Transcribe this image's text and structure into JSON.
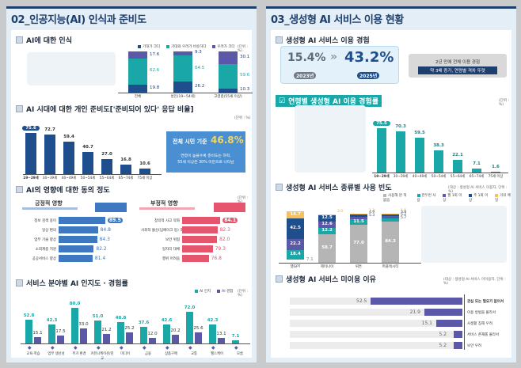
{
  "left": {
    "title": "02_인공지능(AI) 인식과 준비도",
    "s1": {
      "title": "AI에 대한 인식",
      "unit": "(단위 : %)",
      "legend": [
        "기대가 크다",
        "기대와 우려가 비슷하다",
        "우려가 크다"
      ],
      "categories": [
        "전체",
        "성인(19~54세)",
        "고령층(55세 이상)"
      ],
      "expect": [
        19.8,
        26.2,
        10.3
      ],
      "similar": [
        62.6,
        64.5,
        59.6
      ],
      "concern": [
        17.6,
        9.3,
        30.1
      ]
    },
    "s2": {
      "title": "AI 시대에 대한 개인 준비도['준비되어 있다' 응답 비율]",
      "unit": "(단위 : %)",
      "categories": [
        "19~29세",
        "30~39세",
        "40~49세",
        "50~54세",
        "55~64세",
        "65~74세",
        "75세 이상"
      ],
      "values": [
        75.6,
        72.7,
        59.4,
        40.7,
        27.0,
        16.8,
        10.6
      ],
      "callout_head": "전체 시민 기준",
      "callout_value": "46.8%",
      "callout_line1": "연령이 높을수록 준비도는 하락,",
      "callout_line2": "55세 이상은 30% 미만으로 나타남"
    },
    "s3": {
      "title": "AI의 영향에 대한 동의 정도",
      "unit": "(단위 : %)",
      "positive_title": "긍정적 영향",
      "positive_labels": [
        "정보 검색 용이",
        "일상 편의",
        "업무 기술 향상",
        "소외계층 지원",
        "공공서비스 향상"
      ],
      "positive_values": [
        89.5,
        84.8,
        84.3,
        82.2,
        81.4
      ],
      "negative_title": "부정적 영향",
      "negative_labels": [
        "창의적 사고 약화",
        "사회적 불신(딥페이크 등) 조장",
        "보안 위협",
        "일자리 대체",
        "행위 어려움"
      ],
      "negative_values": [
        84.1,
        82.3,
        82.0,
        79.3,
        76.8
      ]
    },
    "s4": {
      "title": "서비스 분야별 AI 인지도 · 경험률",
      "unit": "(단위 : %)",
      "legend": [
        "AI 인지",
        "AI 경험"
      ],
      "categories": [
        "교육·학습",
        "업무 생산성",
        "주거 환경",
        "커뮤니케이션/친교",
        "미디어",
        "금융",
        "상품구매",
        "교통",
        "헬스케어",
        "모름"
      ],
      "awareness": [
        52.8,
        42.3,
        80.0,
        51.0,
        48.8,
        37.6,
        42.6,
        72.0,
        42.3,
        7.1
      ],
      "experience": [
        15.1,
        17.5,
        33.0,
        21.2,
        25.2,
        12.0,
        20.2,
        25.6,
        13.1,
        null
      ]
    }
  },
  "right": {
    "title": "03_생성형 AI 서비스 이용 현황",
    "s1": {
      "title": "생성형 AI 서비스 이용 경험",
      "v2023": "15.4%",
      "y2023": "2023년",
      "v2025": "43.2%",
      "y2025": "2025년",
      "arrow": "»",
      "note1": "2년 만에 전체 이용 경험",
      "note2": "약 3배 증가, 연령별 격차 뚜렷"
    },
    "s2": {
      "title": "연령별 생성형 AI 이용 경험률",
      "unit": "(단위 : %)",
      "categories": [
        "19~29세",
        "30~39세",
        "40~49세",
        "50~54세",
        "55~64세",
        "65~74세",
        "75세 이상"
      ],
      "values": [
        75.5,
        70.3,
        59.5,
        38.3,
        22.1,
        7.1,
        1.6
      ]
    },
    "s3": {
      "title": "생성형 AI 서비스 종류별 사용 빈도",
      "unit": "(대상 : 생성형 AI 서비스 이용자, 단위 : %)",
      "legend": [
        "사용해 본 적 없음",
        "한두번 사용",
        "월 1회 이상",
        "주 1회 이상",
        "거의 매일"
      ],
      "categories": [
        "챗GPT",
        "제미나이",
        "뤼튼",
        "퍼플렉시티"
      ],
      "never": [
        7.1,
        58.7,
        77.0,
        84.3
      ],
      "once": [
        18.4,
        12.2,
        11.5,
        5.7
      ],
      "monthly": [
        22.2,
        12.6,
        5.3,
        5.2
      ],
      "weekly": [
        42.5,
        12.5,
        4.9,
        3.9
      ],
      "daily": [
        14.7,
        3.0,
        1.3,
        1.5
      ]
    },
    "s4": {
      "title": "생성형 AI 서비스 미이용 이유",
      "unit": "(대상 : 생성형 AI 서비스 미이용자, 단위 : %)",
      "labels": [
        "관심 또는 필요가 없어서",
        "이용 방법을 몰라서",
        "사생활 침해 우려",
        "서비스 존재를 몰라서",
        "보안 우려"
      ],
      "values": [
        52.5,
        21.9,
        15.1,
        5.2,
        5.2
      ]
    }
  },
  "chart_data": [
    {
      "type": "bar",
      "stacked": true,
      "title": "AI에 대한 인식",
      "categories": [
        "전체",
        "성인(19~54세)",
        "고령층(55세 이상)"
      ],
      "series": [
        {
          "name": "기대가 크다",
          "values": [
            19.8,
            26.2,
            10.3
          ]
        },
        {
          "name": "기대와 우려가 비슷하다",
          "values": [
            62.6,
            64.5,
            59.6
          ]
        },
        {
          "name": "우려가 크다",
          "values": [
            17.6,
            9.3,
            30.1
          ]
        }
      ],
      "ylabel": "%"
    },
    {
      "type": "bar",
      "title": "AI 시대에 대한 개인 준비도['준비되어 있다' 응답 비율]",
      "categories": [
        "19~29세",
        "30~39세",
        "40~49세",
        "50~54세",
        "55~64세",
        "65~74세",
        "75세 이상"
      ],
      "values": [
        75.6,
        72.7,
        59.4,
        40.7,
        27.0,
        16.8,
        10.6
      ],
      "ylabel": "%"
    },
    {
      "type": "bar",
      "orientation": "horizontal",
      "title": "긍정적 영향",
      "categories": [
        "정보 검색 용이",
        "일상 편의",
        "업무 기술 향상",
        "소외계층 지원",
        "공공서비스 향상"
      ],
      "values": [
        89.5,
        84.8,
        84.3,
        82.2,
        81.4
      ]
    },
    {
      "type": "bar",
      "orientation": "horizontal",
      "title": "부정적 영향",
      "categories": [
        "창의적 사고 약화",
        "사회적 불신(딥페이크 등) 조장",
        "보안 위협",
        "일자리 대체",
        "행위 어려움"
      ],
      "values": [
        84.1,
        82.3,
        82.0,
        79.3,
        76.8
      ]
    },
    {
      "type": "bar",
      "title": "서비스 분야별 AI 인지도 · 경험률",
      "categories": [
        "교육·학습",
        "업무 생산성",
        "주거 환경",
        "커뮤니케이션/친교",
        "미디어",
        "금융",
        "상품구매",
        "교통",
        "헬스케어",
        "모름"
      ],
      "series": [
        {
          "name": "AI 인지",
          "values": [
            52.8,
            42.3,
            80.0,
            51.0,
            48.8,
            37.6,
            42.6,
            72.0,
            42.3,
            7.1
          ]
        },
        {
          "name": "AI 경험",
          "values": [
            15.1,
            17.5,
            33.0,
            21.2,
            25.2,
            12.0,
            20.2,
            25.6,
            13.1,
            null
          ]
        }
      ]
    },
    {
      "type": "bar",
      "title": "연령별 생성형 AI 이용 경험률",
      "categories": [
        "19~29세",
        "30~39세",
        "40~49세",
        "50~54세",
        "55~64세",
        "65~74세",
        "75세 이상"
      ],
      "values": [
        75.5,
        70.3,
        59.5,
        38.3,
        22.1,
        7.1,
        1.6
      ]
    },
    {
      "type": "bar",
      "stacked": true,
      "title": "생성형 AI 서비스 종류별 사용 빈도",
      "categories": [
        "챗GPT",
        "제미나이",
        "뤼튼",
        "퍼플렉시티"
      ],
      "series": [
        {
          "name": "사용해 본 적 없음",
          "values": [
            7.1,
            58.7,
            77.0,
            84.3
          ]
        },
        {
          "name": "한두번 사용",
          "values": [
            18.4,
            12.2,
            11.5,
            5.7
          ]
        },
        {
          "name": "월 1회 이상",
          "values": [
            22.2,
            12.6,
            5.3,
            5.2
          ]
        },
        {
          "name": "주 1회 이상",
          "values": [
            42.5,
            12.5,
            4.9,
            3.9
          ]
        },
        {
          "name": "거의 매일",
          "values": [
            14.7,
            3.0,
            1.3,
            1.5
          ]
        }
      ]
    },
    {
      "type": "bar",
      "orientation": "horizontal",
      "title": "생성형 AI 서비스 미이용 이유",
      "categories": [
        "관심 또는 필요가 없어서",
        "이용 방법을 몰라서",
        "사생활 침해 우려",
        "서비스 존재를 몰라서",
        "보안 우려"
      ],
      "values": [
        52.5,
        21.9,
        15.1,
        5.2,
        5.2
      ]
    }
  ],
  "colors": {
    "navy": "#1f4e8c",
    "teal": "#1aa7a7",
    "purple": "#5b58a8",
    "blue": "#3d78c0",
    "pink": "#e5556e",
    "gray": "#b5b5b5",
    "yellow": "#f5c15c",
    "dark": "#1f3f6e"
  }
}
